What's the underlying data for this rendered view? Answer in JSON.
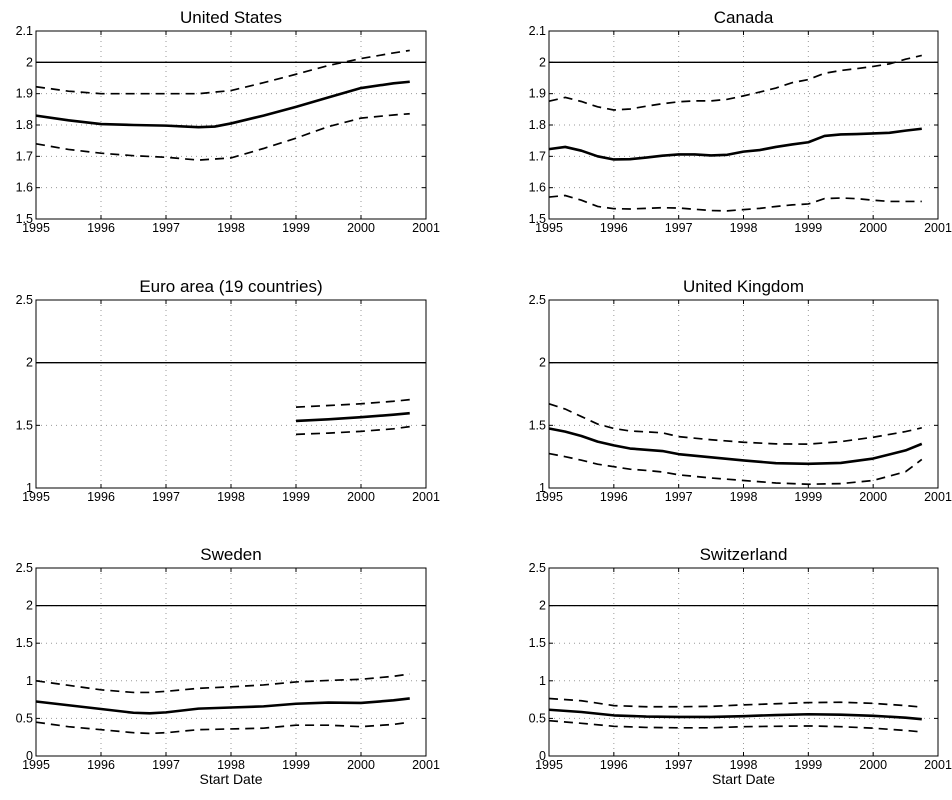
{
  "chart_data": [
    {
      "type": "line",
      "title": "United States",
      "xlabel": "",
      "xlim": [
        1995,
        2001
      ],
      "ylim": [
        1.5,
        2.1
      ],
      "xticks": [
        1995,
        1996,
        1997,
        1998,
        1999,
        2000,
        2001
      ],
      "yticks": [
        "1.5",
        "1.6",
        "1.7",
        "1.8",
        "1.9",
        "2",
        "2.1"
      ],
      "reference_line": 2,
      "grid": true,
      "series": [
        {
          "style": "solid",
          "x": [
            1995,
            1995.5,
            1996,
            1996.5,
            1997,
            1997.5,
            1997.75,
            1998,
            1998.5,
            1999,
            1999.5,
            2000,
            2000.5,
            2000.75
          ],
          "y": [
            1.83,
            1.815,
            1.803,
            1.8,
            1.798,
            1.793,
            1.795,
            1.805,
            1.83,
            1.858,
            1.888,
            1.918,
            1.933,
            1.938
          ]
        },
        {
          "style": "dashed",
          "x": [
            1995,
            1995.5,
            1996,
            1996.5,
            1997,
            1997.5,
            1998,
            1998.5,
            1999,
            1999.5,
            2000,
            2000.5,
            2000.75
          ],
          "y": [
            1.922,
            1.908,
            1.9,
            1.9,
            1.9,
            1.9,
            1.91,
            1.935,
            1.962,
            1.99,
            2.012,
            2.03,
            2.038
          ]
        },
        {
          "style": "dashed",
          "x": [
            1995,
            1995.5,
            1996,
            1996.5,
            1997,
            1997.5,
            1998,
            1998.5,
            1999,
            1999.5,
            2000,
            2000.5,
            2000.75
          ],
          "y": [
            1.74,
            1.722,
            1.71,
            1.702,
            1.697,
            1.688,
            1.695,
            1.725,
            1.758,
            1.795,
            1.822,
            1.832,
            1.836
          ]
        }
      ]
    },
    {
      "type": "line",
      "title": "Canada",
      "xlabel": "",
      "xlim": [
        1995,
        2001
      ],
      "ylim": [
        1.5,
        2.1
      ],
      "xticks": [
        1995,
        1996,
        1997,
        1998,
        1999,
        2000,
        2001
      ],
      "yticks": [
        "1.5",
        "1.6",
        "1.7",
        "1.8",
        "1.9",
        "2",
        "2.1"
      ],
      "reference_line": 2,
      "grid": true,
      "series": [
        {
          "style": "solid",
          "x": [
            1995,
            1995.25,
            1995.5,
            1995.75,
            1996,
            1996.25,
            1996.5,
            1996.75,
            1997,
            1997.25,
            1997.5,
            1997.75,
            1998,
            1998.25,
            1998.5,
            1998.75,
            1999,
            1999.25,
            1999.5,
            1999.75,
            2000,
            2000.25,
            2000.5,
            2000.75
          ],
          "y": [
            1.723,
            1.73,
            1.718,
            1.7,
            1.69,
            1.691,
            1.696,
            1.702,
            1.706,
            1.706,
            1.703,
            1.705,
            1.715,
            1.72,
            1.73,
            1.738,
            1.745,
            1.765,
            1.77,
            1.771,
            1.773,
            1.775,
            1.782,
            1.788
          ]
        },
        {
          "style": "dashed",
          "x": [
            1995,
            1995.25,
            1995.5,
            1995.75,
            1996,
            1996.25,
            1996.5,
            1996.75,
            1997,
            1997.25,
            1997.5,
            1997.75,
            1998,
            1998.25,
            1998.5,
            1998.75,
            1999,
            1999.25,
            1999.5,
            1999.75,
            2000,
            2000.25,
            2000.5,
            2000.75
          ],
          "y": [
            1.876,
            1.888,
            1.875,
            1.858,
            1.848,
            1.851,
            1.86,
            1.868,
            1.874,
            1.877,
            1.877,
            1.882,
            1.893,
            1.905,
            1.918,
            1.935,
            1.945,
            1.965,
            1.974,
            1.98,
            1.987,
            1.995,
            2.01,
            2.022
          ]
        },
        {
          "style": "dashed",
          "x": [
            1995,
            1995.25,
            1995.5,
            1995.75,
            1996,
            1996.25,
            1996.5,
            1996.75,
            1997,
            1997.25,
            1997.5,
            1997.75,
            1998,
            1998.25,
            1998.5,
            1998.75,
            1999,
            1999.25,
            1999.5,
            1999.75,
            2000,
            2000.25,
            2000.5,
            2000.75
          ],
          "y": [
            1.57,
            1.575,
            1.56,
            1.54,
            1.533,
            1.532,
            1.534,
            1.536,
            1.535,
            1.531,
            1.527,
            1.526,
            1.53,
            1.534,
            1.54,
            1.545,
            1.548,
            1.565,
            1.567,
            1.565,
            1.56,
            1.556,
            1.556,
            1.556
          ]
        }
      ]
    },
    {
      "type": "line",
      "title": "Euro area (19 countries)",
      "xlabel": "",
      "xlim": [
        1995,
        2001
      ],
      "ylim": [
        1,
        2.5
      ],
      "xticks": [
        1995,
        1996,
        1997,
        1998,
        1999,
        2000,
        2001
      ],
      "yticks": [
        "1",
        "1.5",
        "2",
        "2.5"
      ],
      "reference_line": 2,
      "grid": true,
      "series": [
        {
          "style": "solid",
          "x": [
            1999,
            1999.5,
            2000,
            2000.5,
            2000.75
          ],
          "y": [
            1.535,
            1.548,
            1.565,
            1.585,
            1.597
          ]
        },
        {
          "style": "dashed",
          "x": [
            1999,
            1999.5,
            2000,
            2000.5,
            2000.75
          ],
          "y": [
            1.645,
            1.658,
            1.672,
            1.692,
            1.705
          ]
        },
        {
          "style": "dashed",
          "x": [
            1999,
            1999.5,
            2000,
            2000.5,
            2000.75
          ],
          "y": [
            1.428,
            1.438,
            1.452,
            1.472,
            1.49
          ]
        }
      ]
    },
    {
      "type": "line",
      "title": "United Kingdom",
      "xlabel": "",
      "xlim": [
        1995,
        2001
      ],
      "ylim": [
        1,
        2.5
      ],
      "xticks": [
        1995,
        1996,
        1997,
        1998,
        1999,
        2000,
        2001
      ],
      "yticks": [
        "1",
        "1.5",
        "2",
        "2.5"
      ],
      "reference_line": 2,
      "grid": true,
      "series": [
        {
          "style": "solid",
          "x": [
            1995,
            1995.25,
            1995.5,
            1995.75,
            1996,
            1996.25,
            1996.5,
            1996.75,
            1997,
            1997.5,
            1998,
            1998.5,
            1999,
            1999.5,
            2000,
            2000.5,
            2000.75
          ],
          "y": [
            1.475,
            1.45,
            1.415,
            1.37,
            1.34,
            1.315,
            1.305,
            1.295,
            1.27,
            1.245,
            1.22,
            1.198,
            1.193,
            1.2,
            1.235,
            1.3,
            1.352
          ]
        },
        {
          "style": "dashed",
          "x": [
            1995,
            1995.25,
            1995.5,
            1995.75,
            1996,
            1996.25,
            1996.5,
            1996.75,
            1997,
            1997.5,
            1998,
            1998.5,
            1999,
            1999.5,
            2000,
            2000.5,
            2000.75
          ],
          "y": [
            1.672,
            1.63,
            1.57,
            1.51,
            1.475,
            1.455,
            1.448,
            1.44,
            1.41,
            1.385,
            1.365,
            1.352,
            1.35,
            1.37,
            1.405,
            1.45,
            1.48
          ]
        },
        {
          "style": "dashed",
          "x": [
            1995,
            1995.25,
            1995.5,
            1995.75,
            1996,
            1996.25,
            1996.5,
            1996.75,
            1997,
            1997.5,
            1998,
            1998.5,
            1999,
            1999.5,
            2000,
            2000.5,
            2000.75
          ],
          "y": [
            1.275,
            1.25,
            1.222,
            1.19,
            1.17,
            1.15,
            1.14,
            1.128,
            1.105,
            1.08,
            1.06,
            1.04,
            1.03,
            1.035,
            1.06,
            1.13,
            1.228
          ]
        }
      ]
    },
    {
      "type": "line",
      "title": "Sweden",
      "xlabel": "Start Date",
      "xlim": [
        1995,
        2001
      ],
      "ylim": [
        0,
        2.5
      ],
      "xticks": [
        1995,
        1996,
        1997,
        1998,
        1999,
        2000,
        2001
      ],
      "yticks": [
        "0",
        "0.5",
        "1",
        "1.5",
        "2",
        "2.5"
      ],
      "reference_line": 2,
      "grid": true,
      "series": [
        {
          "style": "solid",
          "x": [
            1995,
            1995.5,
            1996,
            1996.5,
            1996.75,
            1997,
            1997.5,
            1998,
            1998.5,
            1999,
            1999.5,
            2000,
            2000.5,
            2000.75
          ],
          "y": [
            0.725,
            0.675,
            0.625,
            0.575,
            0.568,
            0.58,
            0.63,
            0.645,
            0.66,
            0.695,
            0.71,
            0.705,
            0.74,
            0.765
          ]
        },
        {
          "style": "dashed",
          "x": [
            1995,
            1995.5,
            1996,
            1996.5,
            1996.75,
            1997,
            1997.5,
            1998,
            1998.5,
            1999,
            1999.5,
            2000,
            2000.5,
            2000.75
          ],
          "y": [
            1.0,
            0.94,
            0.88,
            0.845,
            0.845,
            0.86,
            0.9,
            0.92,
            0.945,
            0.985,
            1.005,
            1.02,
            1.06,
            1.09
          ]
        },
        {
          "style": "dashed",
          "x": [
            1995,
            1995.5,
            1996,
            1996.5,
            1996.75,
            1997,
            1997.5,
            1998,
            1998.5,
            1999,
            1999.5,
            2000,
            2000.5,
            2000.75
          ],
          "y": [
            0.45,
            0.39,
            0.35,
            0.31,
            0.3,
            0.31,
            0.35,
            0.36,
            0.37,
            0.41,
            0.41,
            0.39,
            0.42,
            0.45
          ]
        }
      ]
    },
    {
      "type": "line",
      "title": "Switzerland",
      "xlabel": "Start Date",
      "xlim": [
        1995,
        2001
      ],
      "ylim": [
        0,
        2.5
      ],
      "xticks": [
        1995,
        1996,
        1997,
        1998,
        1999,
        2000,
        2001
      ],
      "yticks": [
        "0",
        "0.5",
        "1",
        "1.5",
        "2",
        "2.5"
      ],
      "reference_line": 2,
      "grid": true,
      "series": [
        {
          "style": "solid",
          "x": [
            1995,
            1995.5,
            1996,
            1996.5,
            1997,
            1997.5,
            1998,
            1998.5,
            1999,
            1999.5,
            2000,
            2000.5,
            2000.75
          ],
          "y": [
            0.615,
            0.585,
            0.54,
            0.525,
            0.52,
            0.52,
            0.53,
            0.545,
            0.555,
            0.55,
            0.535,
            0.51,
            0.49
          ]
        },
        {
          "style": "dashed",
          "x": [
            1995,
            1995.5,
            1996,
            1996.5,
            1997,
            1997.5,
            1998,
            1998.5,
            1999,
            1999.5,
            2000,
            2000.5,
            2000.75
          ],
          "y": [
            0.765,
            0.735,
            0.67,
            0.655,
            0.655,
            0.66,
            0.68,
            0.695,
            0.71,
            0.715,
            0.7,
            0.67,
            0.65
          ]
        },
        {
          "style": "dashed",
          "x": [
            1995,
            1995.5,
            1996,
            1996.5,
            1997,
            1997.5,
            1998,
            1998.5,
            1999,
            1999.5,
            2000,
            2000.5,
            2000.75
          ],
          "y": [
            0.47,
            0.435,
            0.395,
            0.38,
            0.375,
            0.375,
            0.39,
            0.395,
            0.4,
            0.39,
            0.37,
            0.34,
            0.32
          ]
        }
      ]
    }
  ]
}
